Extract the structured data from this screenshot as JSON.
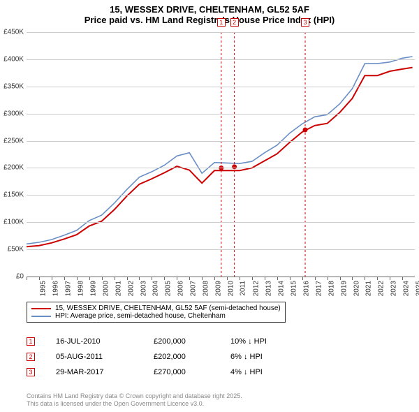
{
  "title_line1": "15, WESSEX DRIVE, CHELTENHAM, GL52 5AF",
  "title_line2": "Price paid vs. HM Land Registry's House Price Index (HPI)",
  "chart": {
    "type": "line",
    "background_color": "#ffffff",
    "grid_color": "#cccccc",
    "grid_color_zero": "#666666",
    "y_axis": {
      "min": 0,
      "max": 450000,
      "step": 50000,
      "labels": [
        "£0",
        "£50K",
        "£100K",
        "£150K",
        "£200K",
        "£250K",
        "£300K",
        "£350K",
        "£400K",
        "£450K"
      ],
      "label_fontsize": 10
    },
    "x_axis": {
      "min": 1995,
      "max": 2025.99,
      "ticks": [
        1995,
        1996,
        1997,
        1998,
        1999,
        2000,
        2001,
        2002,
        2003,
        2004,
        2005,
        2006,
        2007,
        2008,
        2009,
        2010,
        2011,
        2012,
        2013,
        2014,
        2015,
        2016,
        2017,
        2018,
        2019,
        2020,
        2021,
        2022,
        2023,
        2024,
        2025
      ],
      "label_fontsize": 10
    },
    "series": [
      {
        "name": "price_paid",
        "color": "#cc0000",
        "line_width": 2,
        "x": [
          1995,
          1996,
          1997,
          1998,
          1999,
          2000,
          2001,
          2002,
          2003,
          2004,
          2005,
          2006,
          2007,
          2008,
          2009,
          2010,
          2011,
          2012,
          2013,
          2014,
          2015,
          2016,
          2017,
          2018,
          2019,
          2020,
          2021,
          2022,
          2023,
          2024,
          2025,
          2025.8
        ],
        "y": [
          55000,
          57000,
          62000,
          69000,
          77000,
          93000,
          102000,
          123000,
          148000,
          170000,
          180000,
          191000,
          203000,
          196000,
          172000,
          195000,
          195000,
          195000,
          200000,
          213000,
          226000,
          247000,
          266000,
          278000,
          282000,
          302000,
          328000,
          370000,
          370000,
          378000,
          382000,
          385000
        ]
      },
      {
        "name": "hpi",
        "color": "#6a8fc5",
        "line_width": 1.6,
        "x": [
          1995,
          1996,
          1997,
          1998,
          1999,
          2000,
          2001,
          2002,
          2003,
          2004,
          2005,
          2006,
          2007,
          2008,
          2009,
          2010,
          2011,
          2012,
          2013,
          2014,
          2015,
          2016,
          2017,
          2018,
          2019,
          2020,
          2021,
          2022,
          2023,
          2024,
          2025,
          2025.8
        ],
        "y": [
          60000,
          63000,
          68000,
          76000,
          85000,
          103000,
          113000,
          135000,
          160000,
          183000,
          193000,
          205000,
          222000,
          228000,
          190000,
          210000,
          209000,
          208000,
          212000,
          228000,
          242000,
          264000,
          281000,
          294000,
          298000,
          318000,
          346000,
          392000,
          392000,
          395000,
          402000,
          405000
        ]
      }
    ],
    "sale_markers": [
      {
        "n": 1,
        "year": 2010.54,
        "price": 200000,
        "color": "#cc0000"
      },
      {
        "n": 2,
        "year": 2011.59,
        "price": 202000,
        "color": "#cc0000"
      },
      {
        "n": 3,
        "year": 2017.24,
        "price": 270000,
        "color": "#cc0000"
      }
    ]
  },
  "legend": {
    "items": [
      {
        "color": "#cc0000",
        "label": "15, WESSEX DRIVE, CHELTENHAM, GL52 5AF (semi-detached house)"
      },
      {
        "color": "#6a8fc5",
        "label": "HPI: Average price, semi-detached house, Cheltenham"
      }
    ]
  },
  "sales_table": {
    "rows": [
      {
        "n": 1,
        "color": "#cc0000",
        "date": "16-JUL-2010",
        "price": "£200,000",
        "pct": "10% ↓ HPI"
      },
      {
        "n": 2,
        "color": "#cc0000",
        "date": "05-AUG-2011",
        "price": "£202,000",
        "pct": "6% ↓ HPI"
      },
      {
        "n": 3,
        "color": "#cc0000",
        "date": "29-MAR-2017",
        "price": "£270,000",
        "pct": "4% ↓ HPI"
      }
    ]
  },
  "footer_line1": "Contains HM Land Registry data © Crown copyright and database right 2025.",
  "footer_line2": "This data is licensed under the Open Government Licence v3.0."
}
